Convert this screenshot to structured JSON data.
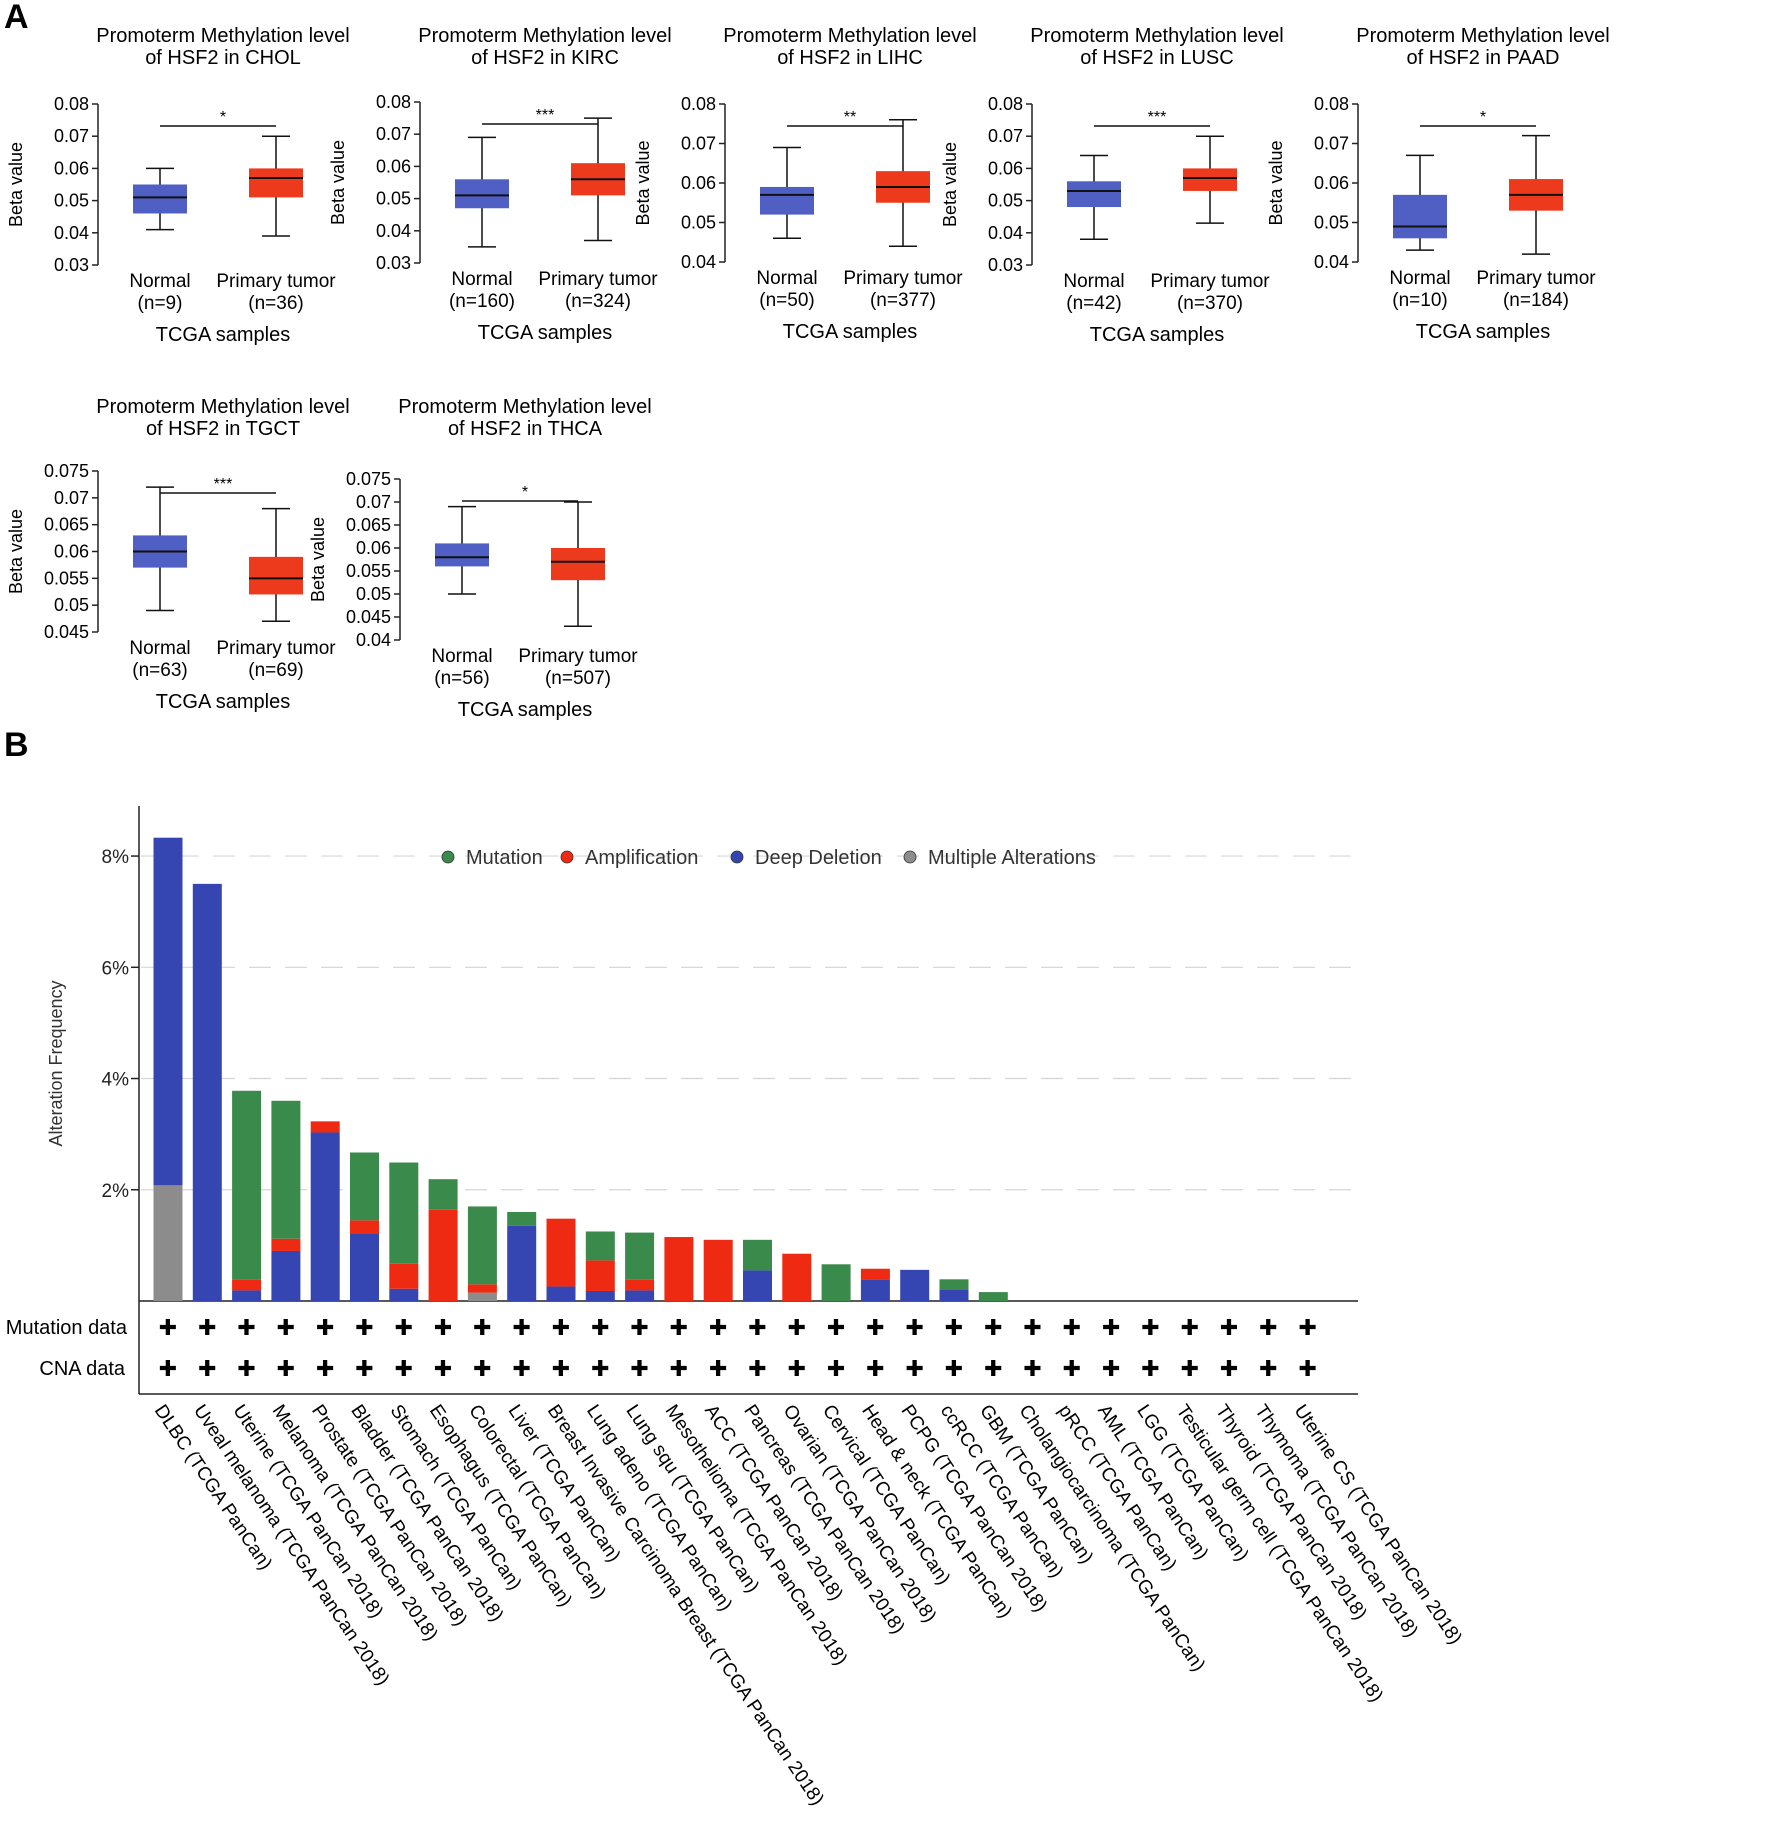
{
  "panel_labels": [
    "A",
    "B"
  ],
  "chart_data": [
    {
      "type": "boxplot",
      "title_lines": [
        "Promoterm Methylation level",
        "of HSF2 in CHOL"
      ],
      "ylabel": "Beta value",
      "xlabel": "TCGA samples",
      "ylim": [
        0.03,
        0.08
      ],
      "yticks": [
        "0.03",
        "0.04",
        "0.05",
        "0.06",
        "0.07",
        "0.08"
      ],
      "significance": "*",
      "groups": [
        {
          "name": "Normal",
          "n_label": "(n=9)",
          "color": "#4f5fc4",
          "min": 0.041,
          "q1": 0.046,
          "median": 0.051,
          "q3": 0.055,
          "max": 0.06
        },
        {
          "name": "Primary tumor",
          "n_label": "(n=36)",
          "color": "#ee3a1c",
          "min": 0.039,
          "q1": 0.051,
          "median": 0.057,
          "q3": 0.06,
          "max": 0.07
        }
      ]
    },
    {
      "type": "boxplot",
      "title_lines": [
        "Promoterm Methylation level",
        "of HSF2 in KIRC"
      ],
      "ylabel": "Beta value",
      "xlabel": "TCGA samples",
      "ylim": [
        0.03,
        0.08
      ],
      "yticks": [
        "0.03",
        "0.04",
        "0.05",
        "0.06",
        "0.07",
        "0.08"
      ],
      "significance": "***",
      "groups": [
        {
          "name": "Normal",
          "n_label": "(n=160)",
          "color": "#4f5fc4",
          "min": 0.035,
          "q1": 0.047,
          "median": 0.051,
          "q3": 0.056,
          "max": 0.069
        },
        {
          "name": "Primary tumor",
          "n_label": "(n=324)",
          "color": "#ee3a1c",
          "min": 0.037,
          "q1": 0.051,
          "median": 0.056,
          "q3": 0.061,
          "max": 0.075
        }
      ]
    },
    {
      "type": "boxplot",
      "title_lines": [
        "Promoterm Methylation level",
        "of HSF2 in LIHC"
      ],
      "ylabel": "Beta value",
      "xlabel": "TCGA samples",
      "ylim": [
        0.04,
        0.08
      ],
      "yticks": [
        "0.04",
        "0.05",
        "0.06",
        "0.07",
        "0.08"
      ],
      "significance": "**",
      "groups": [
        {
          "name": "Normal",
          "n_label": "(n=50)",
          "color": "#4f5fc4",
          "min": 0.046,
          "q1": 0.052,
          "median": 0.057,
          "q3": 0.059,
          "max": 0.069
        },
        {
          "name": "Primary tumor",
          "n_label": "(n=377)",
          "color": "#ee3a1c",
          "min": 0.044,
          "q1": 0.055,
          "median": 0.059,
          "q3": 0.063,
          "max": 0.076
        }
      ]
    },
    {
      "type": "boxplot",
      "title_lines": [
        "Promoterm Methylation level",
        "of HSF2 in LUSC"
      ],
      "ylabel": "Beta value",
      "xlabel": "TCGA samples",
      "ylim": [
        0.03,
        0.08
      ],
      "yticks": [
        "0.03",
        "0.04",
        "0.05",
        "0.06",
        "0.07",
        "0.08"
      ],
      "significance": "***",
      "groups": [
        {
          "name": "Normal",
          "n_label": "(n=42)",
          "color": "#4f5fc4",
          "min": 0.038,
          "q1": 0.048,
          "median": 0.053,
          "q3": 0.056,
          "max": 0.064
        },
        {
          "name": "Primary tumor",
          "n_label": "(n=370)",
          "color": "#ee3a1c",
          "min": 0.043,
          "q1": 0.053,
          "median": 0.057,
          "q3": 0.06,
          "max": 0.07
        }
      ]
    },
    {
      "type": "boxplot",
      "title_lines": [
        "Promoterm Methylation level",
        "of HSF2 in PAAD"
      ],
      "ylabel": "Beta value",
      "xlabel": "TCGA samples",
      "ylim": [
        0.04,
        0.08
      ],
      "yticks": [
        "0.04",
        "0.05",
        "0.06",
        "0.07",
        "0.08"
      ],
      "significance": "*",
      "groups": [
        {
          "name": "Normal",
          "n_label": "(n=10)",
          "color": "#4f5fc4",
          "min": 0.043,
          "q1": 0.046,
          "median": 0.049,
          "q3": 0.057,
          "max": 0.067
        },
        {
          "name": "Primary tumor",
          "n_label": "(n=184)",
          "color": "#ee3a1c",
          "min": 0.042,
          "q1": 0.053,
          "median": 0.057,
          "q3": 0.061,
          "max": 0.072
        }
      ]
    },
    {
      "type": "boxplot",
      "title_lines": [
        "Promoterm Methylation level",
        "of HSF2 in TGCT"
      ],
      "ylabel": "Beta value",
      "xlabel": "TCGA samples",
      "ylim": [
        0.045,
        0.075
      ],
      "yticks": [
        "0.045",
        "0.05",
        "0.055",
        "0.06",
        "0.065",
        "0.07",
        "0.075"
      ],
      "significance": "***",
      "groups": [
        {
          "name": "Normal",
          "n_label": "(n=63)",
          "color": "#4f5fc4",
          "min": 0.049,
          "q1": 0.057,
          "median": 0.06,
          "q3": 0.063,
          "max": 0.072
        },
        {
          "name": "Primary tumor",
          "n_label": "(n=69)",
          "color": "#ee3a1c",
          "min": 0.047,
          "q1": 0.052,
          "median": 0.055,
          "q3": 0.059,
          "max": 0.068
        }
      ]
    },
    {
      "type": "boxplot",
      "title_lines": [
        "Promoterm Methylation level",
        "of HSF2 in THCA"
      ],
      "ylabel": "Beta value",
      "xlabel": "TCGA samples",
      "ylim": [
        0.04,
        0.075
      ],
      "yticks": [
        "0.04",
        "0.045",
        "0.05",
        "0.055",
        "0.06",
        "0.065",
        "0.07",
        "0.075"
      ],
      "significance": "*",
      "groups": [
        {
          "name": "Normal",
          "n_label": "(n=56)",
          "color": "#4f5fc4",
          "min": 0.05,
          "q1": 0.056,
          "median": 0.058,
          "q3": 0.061,
          "max": 0.069
        },
        {
          "name": "Primary tumor",
          "n_label": "(n=507)",
          "color": "#ee3a1c",
          "min": 0.043,
          "q1": 0.053,
          "median": 0.057,
          "q3": 0.06,
          "max": 0.07
        }
      ]
    },
    {
      "type": "bar",
      "stacked": true,
      "ylabel": "Alteration Frequency",
      "ylim": [
        0,
        8.9
      ],
      "yticks": [
        2,
        4,
        6,
        8
      ],
      "ytick_suffix": "%",
      "grid": "dashed horizontal",
      "legend_position": "top",
      "legend": [
        {
          "name": "Mutation",
          "color": "#3a8a4c"
        },
        {
          "name": "Amplification",
          "color": "#ee2a12"
        },
        {
          "name": "Deep Deletion",
          "color": "#3546b3"
        },
        {
          "name": "Multiple Alterations",
          "color": "#8c8c8c"
        }
      ],
      "row_labels": [
        "Mutation data",
        "CNA data"
      ],
      "row_marker": "✚",
      "categories": [
        "DLBC (TCGA PanCan)",
        "Uveal melanoma (TCGA PanCan 2018)",
        "Uterine (TCGA PanCan 2018)",
        "Melanoma (TCGA PanCan 2018)",
        "Prostate (TCGA PanCan 2018)",
        "Bladder (TCGA PanCan 2018)",
        "Stomach (TCGA PanCan)",
        "Esophagus (TCGA PanCan)",
        "Colorectal (TCGA PanCan)",
        "Liver (TCGA PanCan)",
        "Breast Invasive Carcinoma Breast (TCGA PanCan 2018)",
        "Lung adeno (TCGA PanCan)",
        "Lung squ (TCGA PanCan)",
        "Mesothelioma (TCGA PanCan 2018)",
        "ACC (TCGA PanCan 2018)",
        "Pancreas (TCGA PanCan 2018)",
        "Ovarian (TCGA PanCan 2018)",
        "Cervical (TCGA PanCan)",
        "Head & neck (TCGA PanCan)",
        "PCPG (TCGA PanCan 2018)",
        "ccRCC (TCGA PanCan)",
        "GBM (TCGA PanCan)",
        "Cholangiocarcinoma (TCGA PanCan)",
        "pRCC (TCGA PanCan)",
        "AML (TCGA PanCan)",
        "LGG (TCGA PanCan)",
        "Testicular germ cell (TCGA PanCan 2018)",
        "Thyroid (TCGA PanCan 2018)",
        "Thymoma (TCGA PanCan 2018)",
        "Uterine CS (TCGA PanCan 2018)"
      ],
      "series": [
        {
          "name": "Multiple Alterations",
          "values": [
            2.08,
            0,
            0,
            0,
            0,
            0,
            0,
            0,
            0.15,
            0,
            0,
            0,
            0,
            0,
            0,
            0,
            0,
            0,
            0,
            0,
            0,
            0,
            0,
            0,
            0,
            0,
            0,
            0,
            0,
            0
          ]
        },
        {
          "name": "Deep Deletion",
          "values": [
            6.25,
            7.5,
            0.19,
            0.9,
            3.03,
            1.22,
            0.22,
            0,
            0,
            1.35,
            0.26,
            0.18,
            0.19,
            0,
            0,
            0.55,
            0,
            0,
            0.39,
            0.56,
            0.21,
            0,
            0,
            0,
            0,
            0,
            0,
            0,
            0,
            0
          ]
        },
        {
          "name": "Amplification",
          "values": [
            0,
            0,
            0.19,
            0.22,
            0.2,
            0.23,
            0.45,
            1.64,
            0.15,
            0,
            1.22,
            0.55,
            0.19,
            1.15,
            1.1,
            0,
            0.85,
            0,
            0.19,
            0,
            0,
            0,
            0,
            0,
            0,
            0,
            0,
            0,
            0,
            0
          ]
        },
        {
          "name": "Mutation",
          "values": [
            0,
            0,
            3.4,
            2.48,
            0,
            1.22,
            1.82,
            0.55,
            1.4,
            0.25,
            0,
            0.52,
            0.85,
            0,
            0,
            0.55,
            0,
            0.66,
            0,
            0,
            0.18,
            0.16,
            0,
            0,
            0,
            0,
            0,
            0,
            0,
            0
          ]
        }
      ]
    }
  ]
}
